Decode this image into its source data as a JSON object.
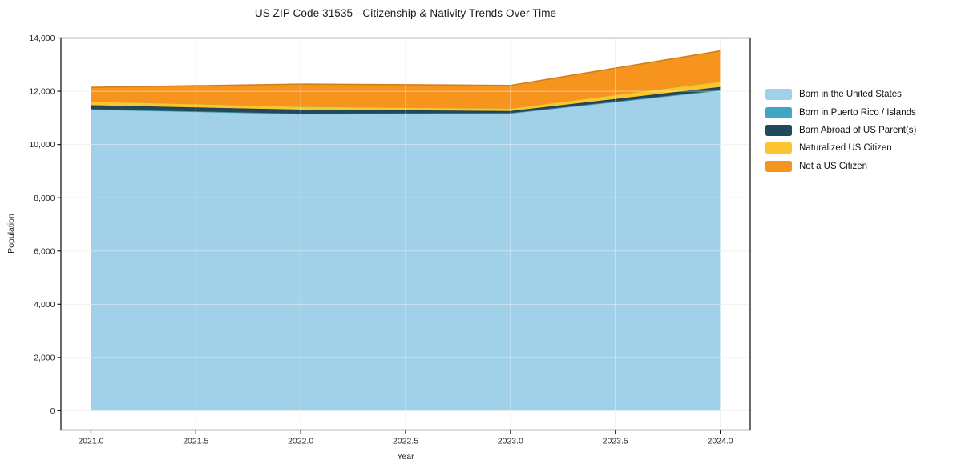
{
  "chart_data": {
    "type": "area",
    "stacked": true,
    "title": "US ZIP Code 31535 - Citizenship & Nativity Trends Over Time",
    "xlabel": "Year",
    "ylabel": "Population",
    "x": [
      2021,
      2022,
      2023,
      2024
    ],
    "series": [
      {
        "name": "Born in the United States",
        "color": "#a0d1e8",
        "values": [
          11320,
          11150,
          11180,
          12025
        ]
      },
      {
        "name": "Born in Puerto Rico / Islands",
        "color": "#41a6c5",
        "values": [
          10,
          10,
          5,
          20
        ]
      },
      {
        "name": "Born Abroad of US Parent(s)",
        "color": "#20495c",
        "values": [
          145,
          150,
          75,
          115
        ]
      },
      {
        "name": "Naturalized US Citizen",
        "color": "#fcc42e",
        "values": [
          150,
          120,
          105,
          215
        ]
      },
      {
        "name": "Not a US Citizen",
        "color": "#f7941e",
        "values": [
          525,
          840,
          855,
          1140
        ]
      }
    ],
    "totals": [
      12150,
      12270,
      12220,
      13515
    ],
    "x_ticks": {
      "values": [
        2021.0,
        2021.5,
        2022.0,
        2022.5,
        2023.0,
        2023.5,
        2024.0
      ],
      "labels": [
        "2021.0",
        "2021.5",
        "2022.0",
        "2022.5",
        "2023.0",
        "2023.5",
        "2024.0"
      ]
    },
    "y_ticks": {
      "values": [
        0,
        2000,
        4000,
        6000,
        8000,
        10000,
        12000,
        14000
      ],
      "labels": [
        "0",
        "2,000",
        "4,000",
        "6,000",
        "8,000",
        "10,000",
        "12,000",
        "14,000"
      ]
    },
    "xlim": [
      2020.857,
      2024.143
    ],
    "ylim": [
      -722,
      14000
    ],
    "grid": true,
    "legend_position": "right",
    "colors": {
      "spine": "#1a1a1a",
      "grid_under": "#e8e8e8",
      "tick_text": "#262626",
      "background": "#ffffff"
    }
  }
}
